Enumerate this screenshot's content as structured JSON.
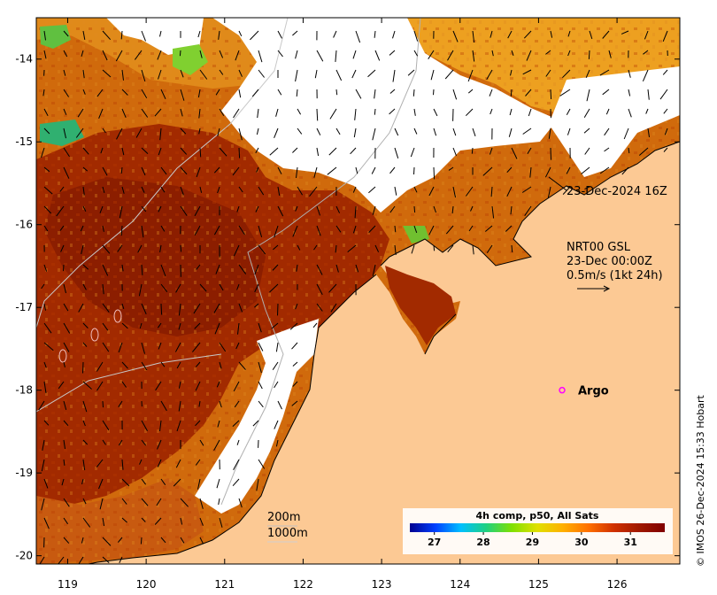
{
  "map": {
    "lon_range": [
      118.6,
      126.8
    ],
    "lat_range": [
      -20.1,
      -13.5
    ],
    "x_ticks": [
      "119",
      "120",
      "121",
      "122",
      "123",
      "124",
      "125",
      "126"
    ],
    "x_tick_values": [
      119,
      120,
      121,
      122,
      123,
      124,
      125,
      126
    ],
    "y_ticks": [
      "-14",
      "-15",
      "-16",
      "-17",
      "-18",
      "-19",
      "-20"
    ],
    "y_tick_values": [
      -14,
      -15,
      -16,
      -17,
      -18,
      -19,
      -20
    ],
    "land_color": "#fcc994",
    "cloud_color": "#ffffff",
    "sst_warm_color": "#a22a00",
    "sst_mid_color": "#d06a0c"
  },
  "annotations": {
    "timestamp": "23-Dec-2024 16Z",
    "current_product": "NRT00 GSL",
    "current_time": "23-Dec 00:00Z",
    "current_scale": "0.5m/s (1kt 24h)",
    "argo_label": "Argo",
    "argo_lon": 125.3,
    "argo_lat": -18.0,
    "argo_color": "#ff00ff",
    "isobath_200": "200m",
    "isobath_1000": "1000m"
  },
  "colorbar": {
    "title": "4h comp, p50, All Sats",
    "range": [
      26.5,
      31.7
    ],
    "ticks": [
      "27",
      "28",
      "29",
      "30",
      "31"
    ],
    "tick_values": [
      27,
      28,
      29,
      30,
      31
    ],
    "colors": [
      "#00008f",
      "#0040ff",
      "#00c0ff",
      "#20d080",
      "#80e000",
      "#e0e000",
      "#ffb000",
      "#ff7000",
      "#d03000",
      "#a01800",
      "#800000"
    ]
  },
  "credit": "© IMOS 26-Dec-2024 15:33 Hobart"
}
